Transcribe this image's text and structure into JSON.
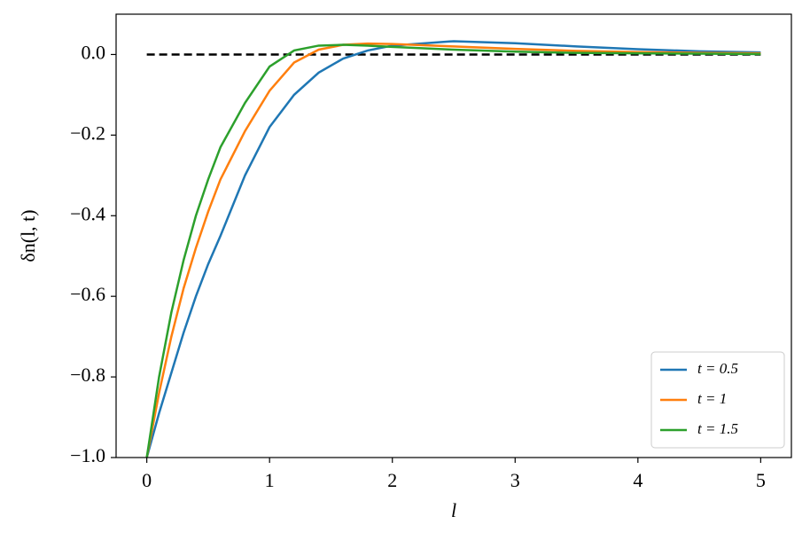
{
  "chart_data": {
    "type": "line",
    "xlabel": "l",
    "ylabel": "δn(l, t)",
    "x": [
      0,
      0.1,
      0.2,
      0.3,
      0.4,
      0.5,
      0.6,
      0.8,
      1.0,
      1.2,
      1.4,
      1.6,
      1.8,
      2.0,
      2.5,
      3.0,
      3.5,
      4.0,
      4.5,
      5.0
    ],
    "series": [
      {
        "name": "t = 0.5",
        "color": "#1f77b4",
        "values": [
          -1,
          -0.89,
          -0.79,
          -0.69,
          -0.6,
          -0.52,
          -0.45,
          -0.3,
          -0.18,
          -0.1,
          -0.045,
          -0.01,
          0.01,
          0.022,
          0.033,
          0.028,
          0.02,
          0.013,
          0.008,
          0.005
        ]
      },
      {
        "name": "t = 1",
        "color": "#ff7f0e",
        "values": [
          -1,
          -0.84,
          -0.7,
          -0.58,
          -0.48,
          -0.39,
          -0.31,
          -0.19,
          -0.09,
          -0.02,
          0.012,
          0.024,
          0.027,
          0.026,
          0.02,
          0.014,
          0.009,
          0.006,
          0.004,
          0.003
        ]
      },
      {
        "name": "t = 1.5",
        "color": "#2ca02c",
        "values": [
          -1,
          -0.8,
          -0.64,
          -0.51,
          -0.4,
          -0.31,
          -0.23,
          -0.12,
          -0.03,
          0.01,
          0.022,
          0.024,
          0.022,
          0.019,
          0.012,
          0.007,
          0.004,
          0.003,
          0.002,
          0.001
        ]
      }
    ],
    "hline": {
      "y": 0,
      "xmin": 0,
      "xmax": 5,
      "color": "#000000",
      "style": "dashed"
    },
    "xlim": [
      -0.25,
      5.25
    ],
    "ylim": [
      -1.0,
      0.1
    ],
    "xticks": [
      0,
      1,
      2,
      3,
      4,
      5
    ],
    "yticks": [
      {
        "value": -1.0,
        "label": "−1.0"
      },
      {
        "value": -0.8,
        "label": "−0.8"
      },
      {
        "value": -0.6,
        "label": "−0.6"
      },
      {
        "value": -0.4,
        "label": "−0.4"
      },
      {
        "value": -0.2,
        "label": "−0.2"
      },
      {
        "value": 0.0,
        "label": "0.0"
      }
    ],
    "legend": "lower right",
    "grid": false
  }
}
